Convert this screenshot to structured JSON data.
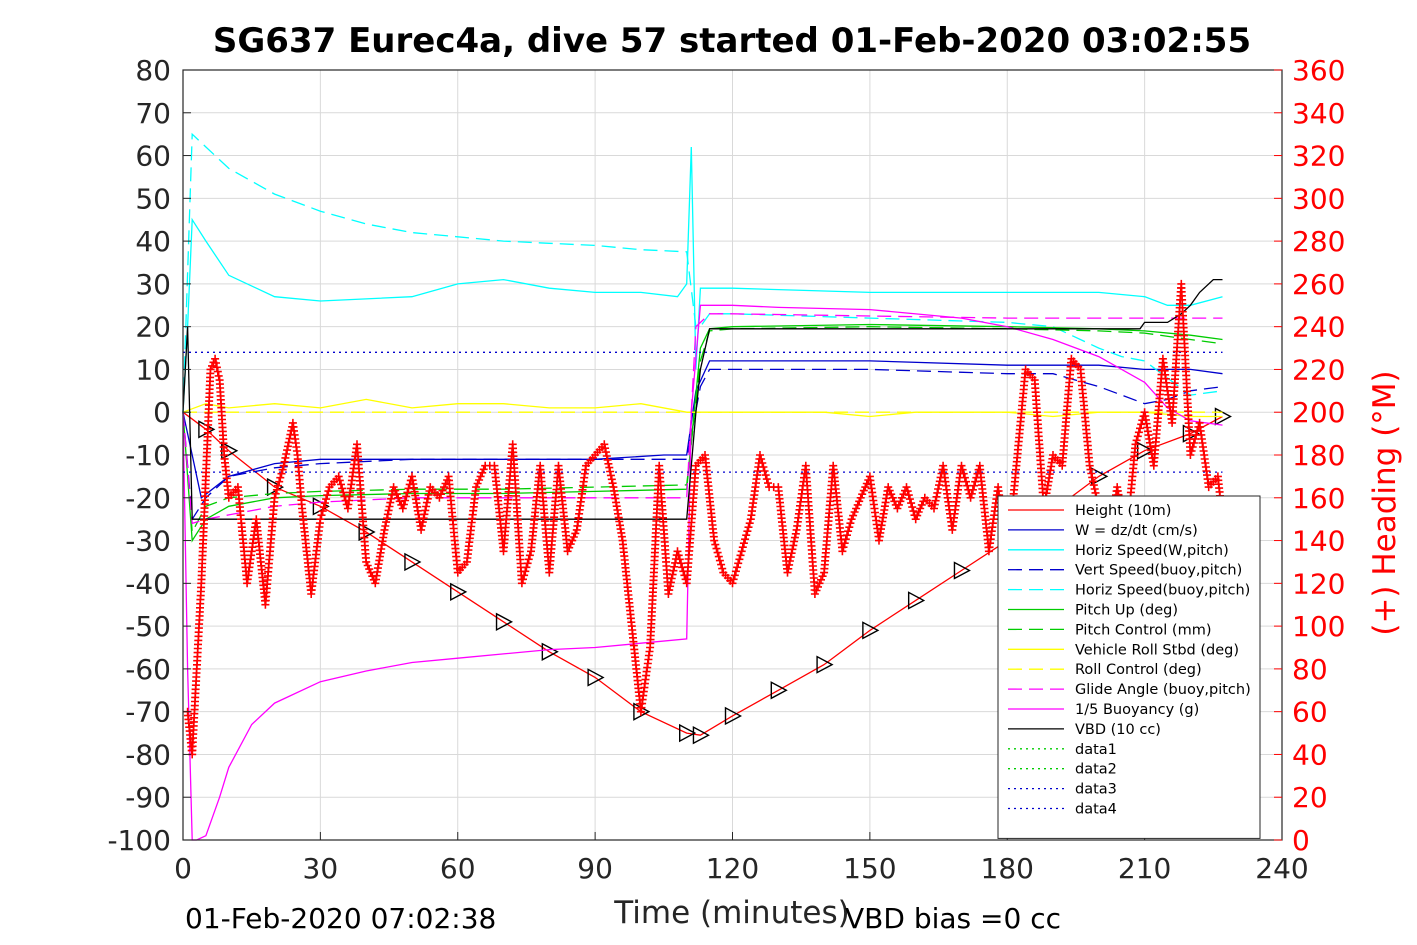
{
  "chart_data": {
    "type": "line",
    "title": "SG637 Eurec4a, dive 57 started 01-Feb-2020 03:02:55",
    "xlabel": "Time (minutes)",
    "ylabel_right": "(+) Heading (°M)",
    "xlim": [
      0,
      240
    ],
    "ylim_left": [
      -100,
      80
    ],
    "ylim_right": [
      0,
      360
    ],
    "xticks": [
      0,
      30,
      60,
      90,
      120,
      150,
      180,
      210,
      240
    ],
    "yticks_left": [
      80,
      70,
      60,
      50,
      40,
      30,
      20,
      10,
      0,
      -10,
      -20,
      -30,
      -40,
      -50,
      -60,
      -70,
      -80,
      -90,
      -100
    ],
    "yticks_right": [
      360,
      340,
      320,
      300,
      280,
      260,
      240,
      220,
      200,
      180,
      160,
      140,
      120,
      100,
      80,
      60,
      40,
      20,
      0
    ],
    "grid": true,
    "legend_position": "lower-right",
    "footer_left": "01-Feb-2020 07:02:38",
    "footer_right": "VBD bias =0 cc",
    "series": [
      {
        "name": "Height (10m)",
        "color": "#ff0000",
        "style": "solid",
        "markers": "triangles",
        "x": [
          0,
          5,
          10,
          20,
          30,
          40,
          50,
          60,
          70,
          80,
          90,
          100,
          110,
          113,
          120,
          130,
          140,
          150,
          160,
          170,
          180,
          190,
          200,
          210,
          220,
          227
        ],
        "y": [
          0,
          -4,
          -9,
          -17.5,
          -22,
          -28,
          -35,
          -42,
          -49,
          -56,
          -62,
          -70,
          -75,
          -75.5,
          -71,
          -65,
          -59,
          -51,
          -44,
          -37,
          -30,
          -23,
          -15,
          -9,
          -5,
          -1
        ]
      },
      {
        "name": "W = dz/dt (cm/s)",
        "color": "#0000cd",
        "style": "solid",
        "x": [
          0,
          2,
          4,
          10,
          20,
          30,
          50,
          70,
          90,
          105,
          110,
          112,
          115,
          120,
          150,
          180,
          200,
          210,
          220,
          227
        ],
        "y": [
          0,
          -10,
          -20,
          -15,
          -12,
          -11,
          -11,
          -11,
          -11,
          -10,
          -10,
          5,
          12,
          12,
          12,
          11,
          11,
          10,
          10,
          9
        ]
      },
      {
        "name": "Horiz Speed(W,pitch)",
        "color": "#00ffff",
        "style": "solid",
        "x": [
          0,
          1,
          2,
          5,
          10,
          20,
          30,
          50,
          60,
          70,
          80,
          90,
          100,
          108,
          110,
          111,
          112,
          113,
          120,
          150,
          180,
          200,
          210,
          215,
          220,
          227
        ],
        "y": [
          0,
          20,
          45,
          40,
          32,
          27,
          26,
          27,
          30,
          31,
          29,
          28,
          28,
          27,
          30,
          62,
          10,
          29,
          29,
          28,
          28,
          28,
          27,
          25,
          25,
          27
        ]
      },
      {
        "name": "Vert Speed(buoy,pitch)",
        "color": "#0000cd",
        "style": "dashed",
        "x": [
          0,
          2,
          5,
          10,
          20,
          30,
          50,
          70,
          90,
          105,
          110,
          113,
          115,
          120,
          150,
          180,
          190,
          200,
          205,
          210,
          215,
          220,
          227
        ],
        "y": [
          0,
          -25,
          -20,
          -15,
          -13,
          -12,
          -11,
          -11,
          -11,
          -11,
          -11,
          6,
          10,
          10,
          10,
          9,
          9,
          6,
          4,
          2,
          3,
          5,
          6
        ]
      },
      {
        "name": "Horiz Speed(buoy,pitch)",
        "color": "#00ffff",
        "style": "dashed",
        "x": [
          0,
          2,
          5,
          10,
          20,
          30,
          40,
          50,
          60,
          70,
          80,
          90,
          100,
          110,
          112,
          113,
          115,
          120,
          150,
          180,
          190,
          200,
          205,
          210,
          215,
          220,
          227
        ],
        "y": [
          0,
          65,
          62,
          57,
          51,
          47,
          44,
          42,
          41,
          40,
          39.5,
          39,
          38,
          37.5,
          20,
          20,
          23,
          23,
          22,
          21,
          20,
          15,
          13,
          12,
          8,
          4,
          5
        ]
      },
      {
        "name": "Pitch Up (deg)",
        "color": "#00cc00",
        "style": "solid",
        "x": [
          0,
          2,
          5,
          10,
          20,
          30,
          50,
          70,
          90,
          110,
          113,
          115,
          120,
          150,
          180,
          200,
          210,
          220,
          227
        ],
        "y": [
          0,
          -30,
          -25,
          -22,
          -20,
          -19.5,
          -19,
          -19,
          -18.5,
          -18,
          15,
          19.5,
          20,
          20.5,
          20,
          19.5,
          19,
          18,
          17
        ]
      },
      {
        "name": "Pitch Control (mm)",
        "color": "#00cc00",
        "style": "dashed",
        "x": [
          0,
          2,
          5,
          10,
          20,
          30,
          50,
          70,
          90,
          110,
          113,
          115,
          120,
          150,
          180,
          200,
          210,
          220,
          227
        ],
        "y": [
          0,
          -28,
          -22,
          -20,
          -19,
          -18.5,
          -18,
          -18,
          -17.5,
          -17,
          12,
          19,
          19.5,
          20,
          19.5,
          19,
          18.5,
          17,
          16
        ]
      },
      {
        "name": "Vehicle Roll Stbd (deg)",
        "color": "#ffff00",
        "style": "solid",
        "x": [
          0,
          5,
          10,
          20,
          30,
          40,
          50,
          60,
          70,
          80,
          90,
          100,
          110,
          120,
          130,
          140,
          150,
          160,
          170,
          180,
          190,
          200,
          210,
          220,
          227
        ],
        "y": [
          0,
          2,
          1,
          2,
          1,
          3,
          1,
          2,
          2,
          1,
          1,
          2,
          0,
          0,
          0,
          0,
          -1,
          0,
          0,
          0,
          -1,
          0,
          0,
          -1,
          -1
        ]
      },
      {
        "name": "Roll Control (deg)",
        "color": "#ffff00",
        "style": "dashed",
        "x": [
          0,
          227
        ],
        "y": [
          0,
          0
        ]
      },
      {
        "name": "Glide Angle (buoy,pitch)",
        "color": "#ff00ff",
        "style": "dashed",
        "x": [
          0,
          2,
          5,
          10,
          20,
          30,
          50,
          70,
          90,
          110,
          112,
          115,
          120,
          150,
          180,
          200,
          210,
          220,
          227
        ],
        "y": [
          0,
          -26,
          -25,
          -24,
          -22,
          -21,
          -20,
          -20,
          -20,
          -20,
          20,
          23,
          23,
          22.5,
          22,
          22,
          22,
          22,
          22
        ]
      },
      {
        "name": "1/5 Buoyancy (g)",
        "color": "#ff00ff",
        "style": "solid",
        "x": [
          0,
          1,
          2,
          3,
          5,
          8,
          10,
          15,
          20,
          30,
          40,
          50,
          60,
          70,
          80,
          90,
          100,
          110,
          111,
          113,
          115,
          120,
          130,
          150,
          170,
          180,
          190,
          200,
          210,
          215,
          220,
          227
        ],
        "y": [
          0,
          -60,
          -100,
          -100,
          -99,
          -90,
          -83,
          -73,
          -68,
          -63,
          -60.5,
          -58.5,
          -57.5,
          -56.5,
          -55.5,
          -55,
          -54,
          -53,
          0,
          25,
          25,
          25,
          24.5,
          24,
          22,
          20,
          17,
          13,
          7,
          1,
          -2,
          -3
        ]
      },
      {
        "name": "VBD (10 cc)",
        "color": "#000000",
        "style": "solid",
        "x": [
          0,
          1,
          2,
          108,
          110,
          112,
          113,
          115,
          120,
          150,
          180,
          200,
          209,
          210,
          215,
          218,
          220,
          222,
          225,
          227
        ],
        "y": [
          0,
          20,
          -25,
          -25,
          -25,
          0,
          10,
          19.5,
          19.5,
          19.5,
          19.5,
          19.5,
          19.5,
          21,
          21,
          23,
          25,
          28,
          31,
          31
        ]
      },
      {
        "name": "data1",
        "color": "#00cc00",
        "style": "dotted",
        "x": [],
        "y": []
      },
      {
        "name": "data2",
        "color": "#00cc00",
        "style": "dotted",
        "x": [],
        "y": []
      },
      {
        "name": "data3",
        "color": "#0000cd",
        "style": "dotted",
        "x": [
          0,
          227
        ],
        "y": [
          14,
          14
        ]
      },
      {
        "name": "data4",
        "color": "#0000cd",
        "style": "dotted",
        "x": [
          0,
          227
        ],
        "y": [
          -14,
          -14
        ]
      }
    ],
    "heading": {
      "axis": "right",
      "color": "#ff0000",
      "marker": "+",
      "x": [
        1,
        2,
        3,
        4,
        5,
        6,
        7,
        8,
        9,
        10,
        12,
        14,
        16,
        18,
        19,
        20,
        22,
        24,
        25,
        26,
        28,
        30,
        32,
        34,
        36,
        38,
        40,
        42,
        44,
        46,
        48,
        50,
        52,
        54,
        56,
        58,
        60,
        62,
        64,
        66,
        68,
        70,
        72,
        74,
        76,
        78,
        80,
        82,
        84,
        86,
        88,
        90,
        92,
        94,
        96,
        98,
        100,
        102,
        104,
        106,
        108,
        110,
        112,
        114,
        116,
        118,
        120,
        122,
        124,
        126,
        128,
        130,
        132,
        134,
        136,
        138,
        140,
        142,
        144,
        146,
        148,
        150,
        152,
        154,
        156,
        158,
        160,
        162,
        164,
        166,
        168,
        170,
        172,
        174,
        176,
        178,
        180,
        182,
        184,
        186,
        188,
        190,
        192,
        194,
        196,
        198,
        200,
        202,
        204,
        206,
        208,
        210,
        212,
        214,
        216,
        218,
        220,
        222,
        224,
        226,
        227
      ],
      "y": [
        60,
        40,
        80,
        120,
        170,
        220,
        225,
        215,
        180,
        160,
        165,
        120,
        150,
        110,
        135,
        160,
        175,
        195,
        180,
        155,
        115,
        150,
        165,
        170,
        155,
        185,
        130,
        120,
        145,
        165,
        155,
        170,
        145,
        165,
        160,
        170,
        125,
        130,
        165,
        175,
        175,
        135,
        185,
        120,
        135,
        175,
        125,
        175,
        135,
        145,
        175,
        180,
        185,
        165,
        140,
        100,
        60,
        90,
        175,
        115,
        135,
        120,
        175,
        180,
        140,
        125,
        120,
        135,
        150,
        180,
        165,
        165,
        125,
        145,
        175,
        115,
        125,
        175,
        135,
        150,
        160,
        170,
        140,
        165,
        155,
        165,
        150,
        160,
        155,
        175,
        145,
        175,
        160,
        175,
        135,
        165,
        130,
        175,
        220,
        215,
        155,
        180,
        175,
        225,
        220,
        175,
        155,
        135,
        165,
        140,
        185,
        200,
        175,
        225,
        195,
        260,
        180,
        195,
        165,
        170,
        150
      ]
    }
  }
}
